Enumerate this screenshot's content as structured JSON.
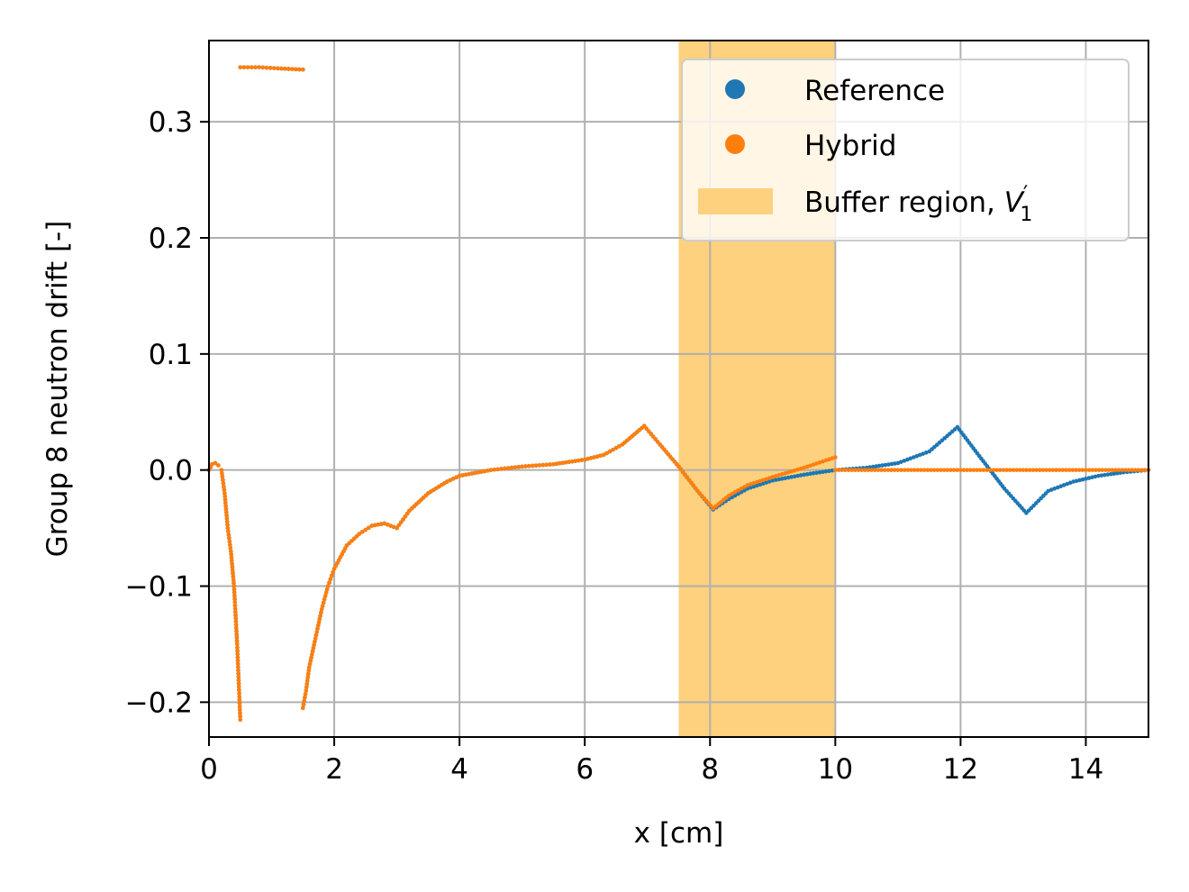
{
  "chart_data": {
    "type": "scatter",
    "title": "",
    "xlabel": "x [cm]",
    "ylabel": "Group 8 neutron drift [-]",
    "xlim": [
      0,
      15
    ],
    "ylim": [
      -0.23,
      0.37
    ],
    "xticks": [
      0,
      2,
      4,
      6,
      8,
      10,
      12,
      14
    ],
    "yticks": [
      -0.2,
      -0.1,
      0.0,
      0.1,
      0.2,
      0.3
    ],
    "xtick_labels": [
      "0",
      "2",
      "4",
      "6",
      "8",
      "10",
      "12",
      "14"
    ],
    "ytick_labels": [
      "−0.2",
      "−0.1",
      "0.0",
      "0.1",
      "0.2",
      "0.3"
    ],
    "grid": true,
    "legend_position": "upper-right",
    "shaded_region": {
      "label": "Buffer region, V′₁",
      "label_main": "Buffer region, ",
      "label_var": "V",
      "label_prime": "′",
      "label_sub": "1",
      "x0": 7.5,
      "x1": 10.0,
      "color": "#fdd17d"
    },
    "series": [
      {
        "name": "Reference",
        "color": "#1f77b4",
        "points": [
          [
            0.0,
            0.0
          ],
          [
            0.05,
            0.005
          ],
          [
            0.1,
            0.006
          ],
          [
            0.15,
            0.004
          ],
          [
            0.2,
            0.0
          ],
          [
            0.25,
            -0.02
          ],
          [
            0.3,
            -0.05
          ],
          [
            0.35,
            -0.07
          ],
          [
            0.4,
            -0.1
          ],
          [
            0.45,
            -0.15
          ],
          [
            0.5,
            -0.215
          ],
          [
            0.5,
            0.347
          ],
          [
            0.8,
            0.347
          ],
          [
            1.1,
            0.346
          ],
          [
            1.5,
            0.345
          ],
          [
            1.5,
            -0.205
          ],
          [
            1.55,
            -0.19
          ],
          [
            1.6,
            -0.17
          ],
          [
            1.7,
            -0.145
          ],
          [
            1.8,
            -0.12
          ],
          [
            1.9,
            -0.1
          ],
          [
            2.0,
            -0.085
          ],
          [
            2.2,
            -0.065
          ],
          [
            2.4,
            -0.055
          ],
          [
            2.6,
            -0.048
          ],
          [
            2.8,
            -0.046
          ],
          [
            3.0,
            -0.05
          ],
          [
            3.2,
            -0.035
          ],
          [
            3.5,
            -0.02
          ],
          [
            3.8,
            -0.01
          ],
          [
            4.0,
            -0.005
          ],
          [
            4.5,
            0.0
          ],
          [
            5.0,
            0.003
          ],
          [
            5.5,
            0.005
          ],
          [
            6.0,
            0.009
          ],
          [
            6.3,
            0.013
          ],
          [
            6.6,
            0.022
          ],
          [
            6.95,
            0.038
          ],
          [
            7.2,
            0.022
          ],
          [
            7.5,
            0.003
          ],
          [
            7.8,
            -0.018
          ],
          [
            8.05,
            -0.034
          ],
          [
            8.3,
            -0.025
          ],
          [
            8.6,
            -0.016
          ],
          [
            9.0,
            -0.009
          ],
          [
            9.5,
            -0.004
          ],
          [
            10.0,
            0.0
          ],
          [
            10.5,
            0.002
          ],
          [
            11.0,
            0.006
          ],
          [
            11.5,
            0.016
          ],
          [
            11.95,
            0.037
          ],
          [
            12.3,
            0.012
          ],
          [
            12.7,
            -0.016
          ],
          [
            13.05,
            -0.037
          ],
          [
            13.4,
            -0.018
          ],
          [
            13.8,
            -0.01
          ],
          [
            14.2,
            -0.005
          ],
          [
            14.6,
            -0.002
          ],
          [
            15.0,
            0.0
          ]
        ]
      },
      {
        "name": "Hybrid",
        "color": "#ff7f0e",
        "points": [
          [
            0.0,
            0.0
          ],
          [
            0.05,
            0.005
          ],
          [
            0.1,
            0.006
          ],
          [
            0.15,
            0.004
          ],
          [
            0.2,
            0.0
          ],
          [
            0.25,
            -0.02
          ],
          [
            0.3,
            -0.05
          ],
          [
            0.35,
            -0.07
          ],
          [
            0.4,
            -0.1
          ],
          [
            0.45,
            -0.15
          ],
          [
            0.5,
            -0.215
          ],
          [
            0.5,
            0.347
          ],
          [
            0.8,
            0.347
          ],
          [
            1.1,
            0.346
          ],
          [
            1.5,
            0.345
          ],
          [
            1.5,
            -0.205
          ],
          [
            1.55,
            -0.19
          ],
          [
            1.6,
            -0.17
          ],
          [
            1.7,
            -0.145
          ],
          [
            1.8,
            -0.12
          ],
          [
            1.9,
            -0.1
          ],
          [
            2.0,
            -0.085
          ],
          [
            2.2,
            -0.065
          ],
          [
            2.4,
            -0.055
          ],
          [
            2.6,
            -0.048
          ],
          [
            2.8,
            -0.046
          ],
          [
            3.0,
            -0.05
          ],
          [
            3.2,
            -0.035
          ],
          [
            3.5,
            -0.02
          ],
          [
            3.8,
            -0.01
          ],
          [
            4.0,
            -0.005
          ],
          [
            4.5,
            0.0
          ],
          [
            5.0,
            0.003
          ],
          [
            5.5,
            0.005
          ],
          [
            6.0,
            0.009
          ],
          [
            6.3,
            0.013
          ],
          [
            6.6,
            0.022
          ],
          [
            6.95,
            0.038
          ],
          [
            7.2,
            0.022
          ],
          [
            7.5,
            0.003
          ],
          [
            7.8,
            -0.018
          ],
          [
            8.05,
            -0.033
          ],
          [
            8.3,
            -0.022
          ],
          [
            8.6,
            -0.013
          ],
          [
            9.0,
            -0.006
          ],
          [
            9.5,
            0.002
          ],
          [
            10.0,
            0.011
          ],
          [
            10.0,
            0.0
          ],
          [
            11.0,
            0.0
          ],
          [
            12.0,
            0.0
          ],
          [
            13.0,
            0.0
          ],
          [
            14.0,
            0.0
          ],
          [
            15.0,
            0.0
          ]
        ]
      }
    ]
  }
}
